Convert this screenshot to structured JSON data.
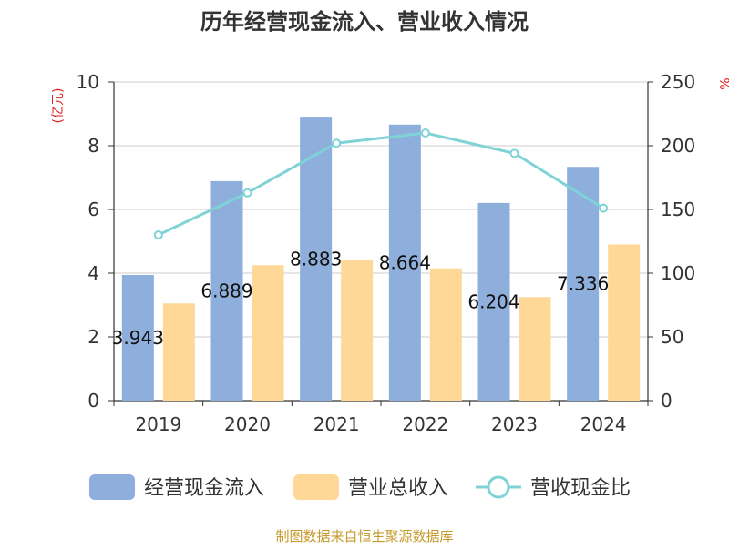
{
  "chart_data": {
    "type": "bar",
    "title": "历年经营现金流入、营业收入情况",
    "categories": [
      "2019",
      "2020",
      "2021",
      "2022",
      "2023",
      "2024"
    ],
    "y_left": {
      "unit": "(亿元)",
      "ylim": [
        0,
        10
      ],
      "ticks": [
        "0",
        "2",
        "4",
        "6",
        "8",
        "10"
      ]
    },
    "y_right": {
      "unit": "%",
      "ylim": [
        0,
        250
      ],
      "ticks": [
        "0",
        "50",
        "100",
        "150",
        "200",
        "250"
      ]
    },
    "grid": true,
    "legend_position": "bottom",
    "series": [
      {
        "name": "经营现金流入",
        "kind": "bar",
        "axis": "left",
        "color": "#8eaedb",
        "values": [
          3.943,
          6.889,
          8.883,
          8.664,
          6.204,
          7.336
        ],
        "data_labels": [
          "3.943",
          "6.889",
          "8.883",
          "8.664",
          "6.204",
          "7.336"
        ]
      },
      {
        "name": "营业总收入",
        "kind": "bar",
        "axis": "left",
        "color": "#ffd898",
        "values": [
          3.05,
          4.25,
          4.4,
          4.15,
          3.25,
          4.9
        ]
      },
      {
        "name": "营收现金比",
        "kind": "line",
        "axis": "right",
        "color": "#7fd3d6",
        "values": [
          130,
          163,
          202,
          210,
          194,
          151
        ]
      }
    ]
  },
  "source_text": "制图数据来自恒生聚源数据库"
}
